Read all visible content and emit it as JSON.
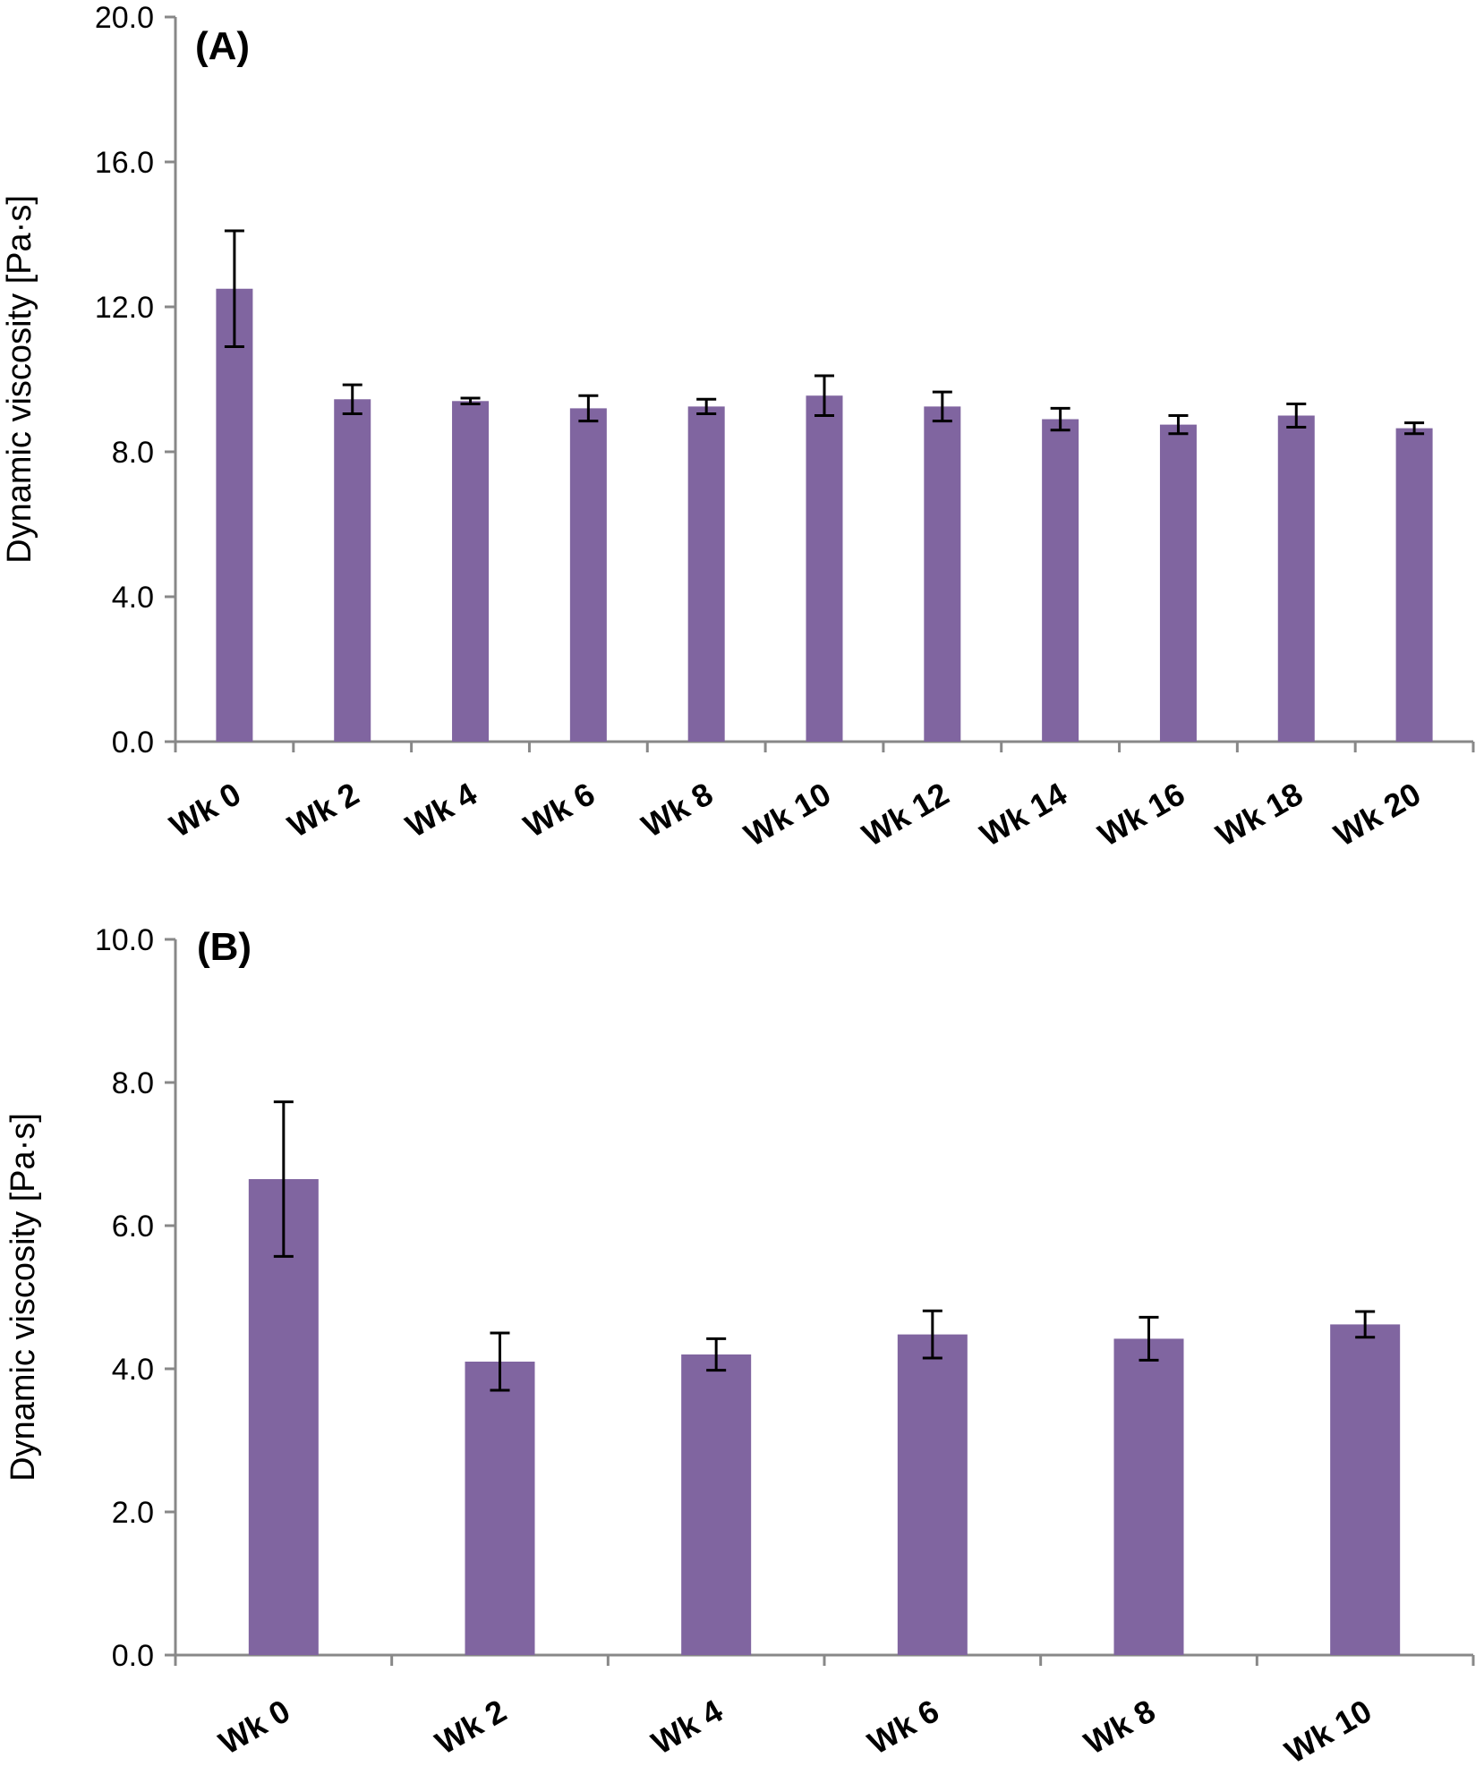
{
  "colors": {
    "bar": "#8065a0",
    "axis": "#888888",
    "error": "#000000"
  },
  "chart_data": [
    {
      "type": "bar",
      "panel_label": "(A)",
      "ylabel": "Dynamic viscosity [Pa·s]",
      "xlabel": "",
      "ylim": [
        0,
        20
      ],
      "yticks": [
        0,
        4,
        8,
        12,
        16,
        20
      ],
      "ytick_labels": [
        "0.0",
        "4.0",
        "8.0",
        "12.0",
        "16.0",
        "20.0"
      ],
      "categories": [
        "Wk 0",
        "Wk 2",
        "Wk 4",
        "Wk 6",
        "Wk 8",
        "Wk 10",
        "Wk 12",
        "Wk 14",
        "Wk 16",
        "Wk 18",
        "Wk 20"
      ],
      "values": [
        12.5,
        9.45,
        9.4,
        9.2,
        9.25,
        9.55,
        9.25,
        8.9,
        8.75,
        9.0,
        8.65
      ],
      "errors": [
        1.6,
        0.4,
        0.08,
        0.35,
        0.2,
        0.55,
        0.4,
        0.3,
        0.25,
        0.32,
        0.15
      ],
      "grid": false
    },
    {
      "type": "bar",
      "panel_label": "(B)",
      "ylabel": "Dynamic viscosity [Pa·s]",
      "xlabel": "",
      "ylim": [
        0,
        10
      ],
      "yticks": [
        0,
        2,
        4,
        6,
        8,
        10
      ],
      "ytick_labels": [
        "0.0",
        "2.0",
        "4.0",
        "6.0",
        "8.0",
        "10.0"
      ],
      "categories": [
        "Wk 0",
        "Wk 2",
        "Wk 4",
        "Wk 6",
        "Wk 8",
        "Wk 10"
      ],
      "values": [
        6.65,
        4.1,
        4.2,
        4.48,
        4.42,
        4.62
      ],
      "errors": [
        1.08,
        0.4,
        0.22,
        0.33,
        0.3,
        0.18
      ],
      "grid": false
    }
  ]
}
